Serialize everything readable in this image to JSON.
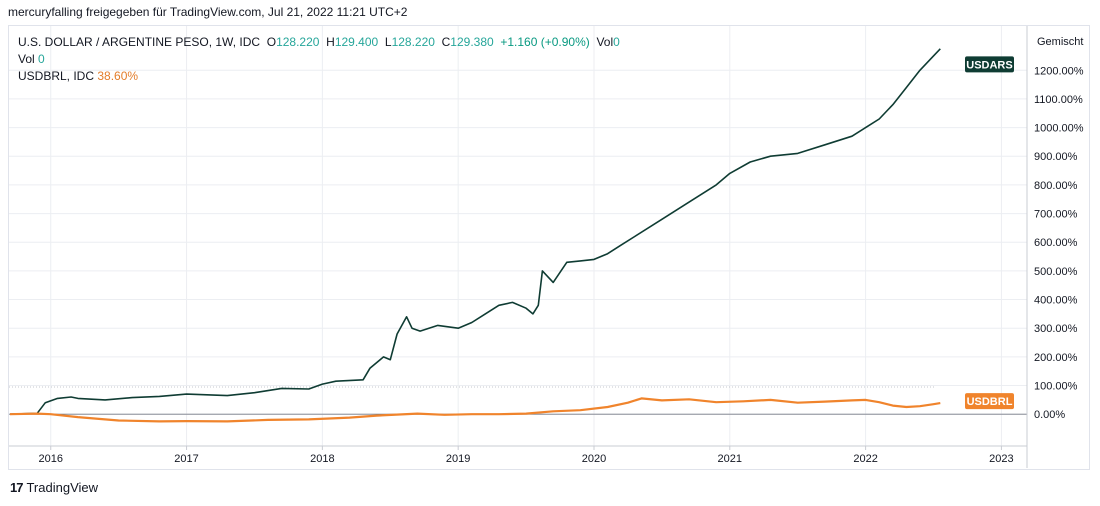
{
  "caption": "mercuryfalling freigegeben für TradingView.com, Jul 21, 2022 11:21 UTC+2",
  "legend": {
    "symbol": "U.S. DOLLAR / ARGENTINE PESO, 1W, IDC",
    "o_label": "O",
    "o_value": "128.220",
    "h_label": "H",
    "h_value": "129.400",
    "l_label": "L",
    "l_value": "128.220",
    "c_label": "C",
    "c_value": "129.380",
    "change": "+1.160 (+0.90%)",
    "vol_suffix": "Vol",
    "vol_suffix_value": "0",
    "vol_label": "Vol",
    "vol_value": "0",
    "compare_label": "USDBRL, IDC",
    "compare_value": "38.60%"
  },
  "scale_title": "Gemischt",
  "footer": {
    "brand": "TradingView",
    "mark": "17"
  },
  "colors": {
    "usdars": "#0f3c33",
    "usdbrl": "#f0842c",
    "grid": "#eceef2",
    "axis_text": "#131722"
  },
  "chart_data": {
    "type": "line",
    "title": "U.S. DOLLAR / ARGENTINE PESO, 1W, IDC",
    "ylabel": "",
    "xlabel": "",
    "y_scale": "percent",
    "ylim": [
      -90,
      1330
    ],
    "xlim": [
      2015.7,
      2023.1
    ],
    "grid": true,
    "y_ticks": [
      0,
      100,
      200,
      300,
      400,
      500,
      600,
      700,
      800,
      900,
      1000,
      1100,
      1200
    ],
    "y_tick_labels": [
      "0.00%",
      "100.00%",
      "200.00%",
      "300.00%",
      "400.00%",
      "500.00%",
      "600.00%",
      "700.00%",
      "800.00%",
      "900.00%",
      "1000.00%",
      "1100.00%",
      "1200.00%"
    ],
    "x_ticks": [
      2016,
      2017,
      2018,
      2019,
      2020,
      2021,
      2022,
      2023
    ],
    "x_tick_labels": [
      "2016",
      "2017",
      "2018",
      "2019",
      "2020",
      "2021",
      "2022",
      "2023"
    ],
    "series": [
      {
        "name": "USDARS",
        "last_label": "USDARS",
        "x": [
          2015.7,
          2015.9,
          2015.96,
          2016.05,
          2016.15,
          2016.2,
          2016.4,
          2016.6,
          2016.8,
          2017.0,
          2017.3,
          2017.5,
          2017.7,
          2017.9,
          2018.0,
          2018.1,
          2018.3,
          2018.35,
          2018.45,
          2018.5,
          2018.55,
          2018.62,
          2018.66,
          2018.72,
          2018.85,
          2019.0,
          2019.1,
          2019.2,
          2019.3,
          2019.4,
          2019.5,
          2019.55,
          2019.59,
          2019.62,
          2019.7,
          2019.8,
          2019.9,
          2020.0,
          2020.1,
          2020.2,
          2020.3,
          2020.5,
          2020.7,
          2020.9,
          2021.0,
          2021.15,
          2021.3,
          2021.5,
          2021.7,
          2021.9,
          2022.0,
          2022.1,
          2022.2,
          2022.3,
          2022.4,
          2022.5,
          2022.55
        ],
        "values": [
          0,
          3,
          40,
          55,
          60,
          55,
          50,
          58,
          62,
          70,
          65,
          75,
          90,
          88,
          105,
          115,
          120,
          160,
          200,
          190,
          280,
          340,
          300,
          290,
          310,
          300,
          320,
          350,
          380,
          390,
          370,
          350,
          380,
          500,
          460,
          530,
          535,
          540,
          560,
          590,
          620,
          680,
          740,
          800,
          840,
          880,
          900,
          910,
          940,
          970,
          1000,
          1030,
          1080,
          1140,
          1200,
          1250,
          1275
        ]
      },
      {
        "name": "USDBRL",
        "last_label": "USDBRL",
        "x": [
          2015.7,
          2015.9,
          2016.0,
          2016.2,
          2016.5,
          2016.8,
          2017.0,
          2017.3,
          2017.6,
          2017.9,
          2018.2,
          2018.4,
          2018.7,
          2018.9,
          2019.1,
          2019.3,
          2019.5,
          2019.7,
          2019.9,
          2020.1,
          2020.25,
          2020.35,
          2020.5,
          2020.7,
          2020.9,
          2021.1,
          2021.3,
          2021.5,
          2021.7,
          2021.9,
          2022.0,
          2022.1,
          2022.2,
          2022.3,
          2022.4,
          2022.5,
          2022.55
        ],
        "values": [
          0,
          2,
          0,
          -10,
          -22,
          -25,
          -24,
          -25,
          -20,
          -18,
          -12,
          -5,
          2,
          -2,
          0,
          0,
          2,
          10,
          14,
          25,
          40,
          55,
          48,
          52,
          42,
          45,
          50,
          40,
          44,
          48,
          50,
          42,
          30,
          25,
          28,
          35,
          38.6
        ]
      }
    ]
  }
}
